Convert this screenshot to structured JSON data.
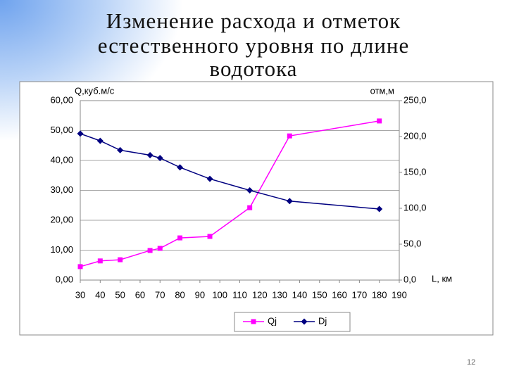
{
  "title_lines": [
    "Изменение расхода и отметок",
    "естественного уровня  по длине",
    "водотока"
  ],
  "page_number": "12",
  "chart_data": {
    "type": "line",
    "y_label": "Q,куб.м/с",
    "y2_label": "отм,м",
    "x_label": "L, км",
    "x": [
      30,
      40,
      50,
      65,
      70,
      80,
      95,
      115,
      135,
      180
    ],
    "series": [
      {
        "name": "Qj",
        "color": "#ff00ff",
        "values": [
          4.5,
          6.4,
          6.8,
          9.9,
          10.6,
          14.1,
          14.6,
          24.2,
          48.2,
          53.2
        ]
      },
      {
        "name": "Dj",
        "color": "#000080",
        "axis": "y2",
        "values": [
          204,
          194,
          181,
          174,
          170,
          157,
          141,
          125,
          110,
          99
        ]
      }
    ],
    "xlim": [
      30,
      190
    ],
    "xticks": [
      30,
      40,
      50,
      60,
      70,
      80,
      90,
      100,
      110,
      120,
      130,
      140,
      150,
      160,
      170,
      180,
      190
    ],
    "ylim": [
      0,
      60
    ],
    "yticks": [
      {
        "value": 0,
        "label": "0,00"
      },
      {
        "value": 10,
        "label": "10,00"
      },
      {
        "value": 20,
        "label": "20,00"
      },
      {
        "value": 30,
        "label": "30,00"
      },
      {
        "value": 40,
        "label": "40,00"
      },
      {
        "value": 50,
        "label": "50,00"
      },
      {
        "value": 60,
        "label": "60,00"
      }
    ],
    "y2lim": [
      0,
      250
    ],
    "y2ticks": [
      {
        "value": 0,
        "label": "0,0"
      },
      {
        "value": 50,
        "label": "50,0"
      },
      {
        "value": 100,
        "label": "100,0"
      },
      {
        "value": 150,
        "label": "150,0"
      },
      {
        "value": 200,
        "label": "200,0"
      },
      {
        "value": 250,
        "label": "250,0"
      }
    ],
    "grid": true
  }
}
